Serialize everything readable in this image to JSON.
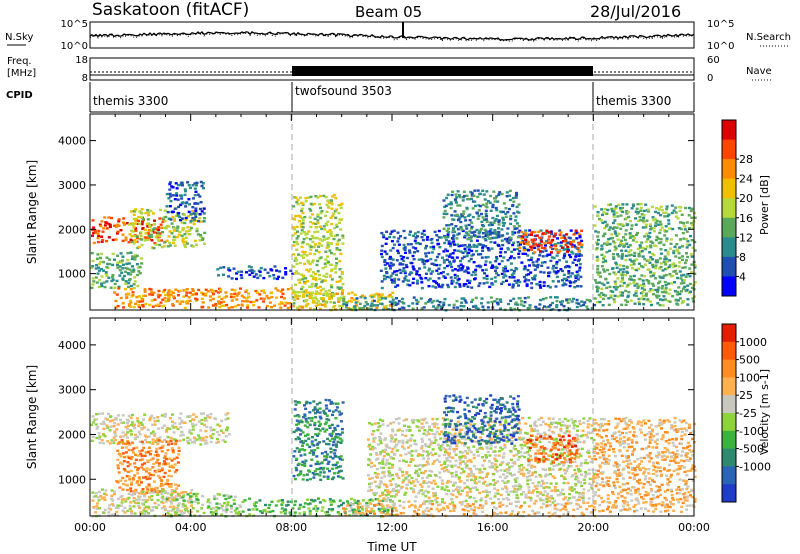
{
  "header": {
    "station": "Saskatoon (fitACF)",
    "beam": "Beam 05",
    "date": "28/Jul/2016"
  },
  "labels": {
    "nsky": "N.Sky",
    "nsearch": "N.Search",
    "freq_line1": "Freq.",
    "freq_line2": "[MHz]",
    "nave": "Nave",
    "cpid": "CPID"
  },
  "noise_axis": {
    "left_ticks": [
      "10^5",
      "10^0"
    ],
    "right_ticks": [
      "10^5",
      "10^0"
    ]
  },
  "freq_axis": {
    "left_ticks": [
      "18",
      "8"
    ],
    "right_ticks": [
      "60",
      "0"
    ]
  },
  "cpid_segments": [
    {
      "label": "themis 3300",
      "start_hour": 0,
      "end_hour": 8
    },
    {
      "label": "twofsound 3503",
      "start_hour": 8,
      "end_hour": 20
    },
    {
      "label": "themis 3300",
      "start_hour": 20,
      "end_hour": 24
    }
  ],
  "chart_data": [
    {
      "type": "heatmap",
      "ylabel": "Slant Range [km]",
      "xlabel": "",
      "xlim_hours": [
        0,
        24
      ],
      "ylim": [
        180,
        4600
      ],
      "yticks": [
        "1000",
        "2000",
        "3000",
        "4000"
      ],
      "colorbar": {
        "title": "Power [dB]",
        "tick_labels": [
          "4",
          "8",
          "12",
          "16",
          "20",
          "24",
          "28"
        ],
        "colors": [
          "#0000ff",
          "#1f4fb0",
          "#2a8c8c",
          "#5aa85a",
          "#b5d83a",
          "#f0c000",
          "#ff8c00",
          "#ff4500",
          "#dd0000"
        ]
      },
      "scatter_regions": [
        {
          "t": [
            0.0,
            3.0
          ],
          "r": [
            1700,
            2300
          ],
          "level": 7
        },
        {
          "t": [
            1.5,
            4.5
          ],
          "r": [
            1600,
            2500
          ],
          "level": 4
        },
        {
          "t": [
            3.0,
            4.5
          ],
          "r": [
            2200,
            3100
          ],
          "level": 1
        },
        {
          "t": [
            0.0,
            2.0
          ],
          "r": [
            700,
            1500
          ],
          "level": 3
        },
        {
          "t": [
            0.8,
            8.0
          ],
          "r": [
            250,
            700
          ],
          "level": 6
        },
        {
          "t": [
            5.0,
            8.0
          ],
          "r": [
            900,
            1200
          ],
          "level": 1
        },
        {
          "t": [
            8.0,
            10.0
          ],
          "r": [
            300,
            2800
          ],
          "level": 4
        },
        {
          "t": [
            8.0,
            12.0
          ],
          "r": [
            200,
            600
          ],
          "level": 5
        },
        {
          "t": [
            10.0,
            20.0
          ],
          "r": [
            200,
            500
          ],
          "level": 2
        },
        {
          "t": [
            11.5,
            19.5
          ],
          "r": [
            700,
            2000
          ],
          "level": 1
        },
        {
          "t": [
            14.0,
            17.0
          ],
          "r": [
            1800,
            2900
          ],
          "level": 2
        },
        {
          "t": [
            17.0,
            19.5
          ],
          "r": [
            1500,
            2000
          ],
          "level": 7
        },
        {
          "t": [
            20.0,
            24.0
          ],
          "r": [
            300,
            2600
          ],
          "level": 3
        }
      ]
    },
    {
      "type": "heatmap",
      "ylabel": "Slant Range [km]",
      "xlabel": "Time UT",
      "xlim_hours": [
        0,
        24
      ],
      "ylim": [
        180,
        4600
      ],
      "yticks": [
        "1000",
        "2000",
        "3000",
        "4000"
      ],
      "xticks": [
        "00:00",
        "04:00",
        "08:00",
        "12:00",
        "16:00",
        "20:00",
        "00:00"
      ],
      "colorbar": {
        "title": "Velocity [m s-1]",
        "tick_labels": [
          "1000",
          "500",
          "100",
          "25",
          "-25",
          "-100",
          "-500",
          "-1000"
        ],
        "colors": [
          "#1e3cc8",
          "#2a64b4",
          "#2e8a6e",
          "#3cb43c",
          "#8ed23c",
          "#c8c8c0",
          "#ffb050",
          "#ff8c1e",
          "#ff5a0a",
          "#e61e00"
        ]
      },
      "scatter_regions": [
        {
          "t": [
            0.0,
            5.5
          ],
          "r": [
            1800,
            2500
          ],
          "level": 5
        },
        {
          "t": [
            1.0,
            3.5
          ],
          "r": [
            700,
            1900
          ],
          "level": 7
        },
        {
          "t": [
            0.0,
            4.0
          ],
          "r": [
            200,
            800
          ],
          "level": 5
        },
        {
          "t": [
            3.0,
            6.0
          ],
          "r": [
            200,
            700
          ],
          "level": 4
        },
        {
          "t": [
            6.0,
            12.0
          ],
          "r": [
            200,
            600
          ],
          "level": 3
        },
        {
          "t": [
            8.0,
            10.0
          ],
          "r": [
            1000,
            2800
          ],
          "level": 2
        },
        {
          "t": [
            11.0,
            20.0
          ],
          "r": [
            500,
            2400
          ],
          "level": 5
        },
        {
          "t": [
            10.0,
            20.0
          ],
          "r": [
            200,
            500
          ],
          "level": 6
        },
        {
          "t": [
            14.0,
            17.0
          ],
          "r": [
            1800,
            2900
          ],
          "level": 1
        },
        {
          "t": [
            17.3,
            19.3
          ],
          "r": [
            1400,
            2000
          ],
          "level": 8
        },
        {
          "t": [
            20.0,
            24.0
          ],
          "r": [
            300,
            2400
          ],
          "level": 6
        }
      ]
    }
  ]
}
